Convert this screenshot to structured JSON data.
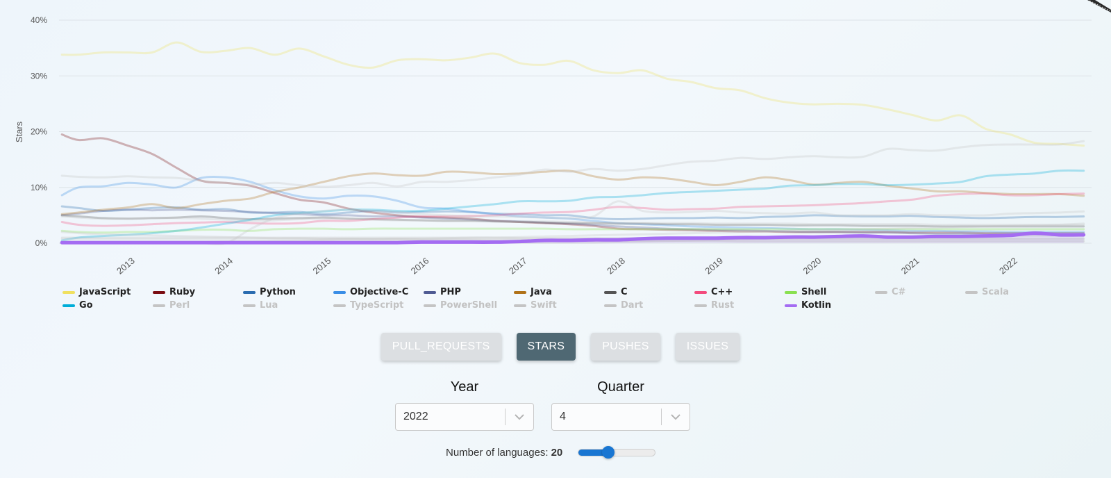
{
  "chart_data": {
    "type": "line",
    "title": "",
    "ylabel": "Stars",
    "xlabel": "",
    "xlim": [
      2012.3,
      2022.83
    ],
    "ylim": [
      0,
      40
    ],
    "yticks": [
      0,
      10,
      20,
      30,
      40
    ],
    "ytick_labels": [
      "0%",
      "10%",
      "20%",
      "30%",
      "40%"
    ],
    "xticks": [
      2013,
      2014,
      2015,
      2016,
      2017,
      2018,
      2019,
      2020,
      2021,
      2022
    ],
    "xtick_labels": [
      "2013",
      "2014",
      "2015",
      "2016",
      "2017",
      "2018",
      "2019",
      "2020",
      "2021",
      "2022"
    ],
    "grid": "horizontal",
    "legend_position": "bottom",
    "x": [
      2012.33,
      2012.5,
      2012.75,
      2013.0,
      2013.25,
      2013.5,
      2013.75,
      2014.0,
      2014.25,
      2014.5,
      2014.75,
      2015.0,
      2015.25,
      2015.5,
      2015.75,
      2016.0,
      2016.25,
      2016.5,
      2016.75,
      2017.0,
      2017.25,
      2017.5,
      2017.75,
      2018.0,
      2018.25,
      2018.5,
      2018.75,
      2019.0,
      2019.25,
      2019.5,
      2019.75,
      2020.0,
      2020.25,
      2020.5,
      2020.75,
      2021.0,
      2021.25,
      2021.5,
      2021.75,
      2022.0,
      2022.25,
      2022.5,
      2022.75
    ],
    "series": [
      {
        "name": "JavaScript",
        "color": "#f0e060",
        "muted": true,
        "emphasized": false,
        "values": [
          33.8,
          33.8,
          34.2,
          34.2,
          34.2,
          36.0,
          34.3,
          34.5,
          35.0,
          33.8,
          34.9,
          33.5,
          32.0,
          31.5,
          32.8,
          33.0,
          32.8,
          33.3,
          34.0,
          32.3,
          32.0,
          32.7,
          31.0,
          30.5,
          31.0,
          29.5,
          28.9,
          27.8,
          27.4,
          26.0,
          25.2,
          24.9,
          25.0,
          24.8,
          24.0,
          23.0,
          22.0,
          22.9,
          20.5,
          19.5,
          18.0,
          17.8,
          17.5
        ]
      },
      {
        "name": "Ruby",
        "color": "#7a0c12",
        "muted": true,
        "emphasized": false,
        "values": [
          19.5,
          18.5,
          18.8,
          17.5,
          16.0,
          13.5,
          11.2,
          10.8,
          10.3,
          9.0,
          7.8,
          7.3,
          6.2,
          5.5,
          5.0,
          4.7,
          4.6,
          4.4,
          4.0,
          3.8,
          3.6,
          3.4,
          3.1,
          2.6,
          2.5,
          2.4,
          2.3,
          2.2,
          2.1,
          2.1,
          2.0,
          2.0,
          2.0,
          2.0,
          2.0,
          1.9,
          1.9,
          1.9,
          1.8,
          1.8,
          1.8,
          1.8,
          1.8
        ]
      },
      {
        "name": "Python",
        "color": "#2b6cb0",
        "muted": true,
        "emphasized": false,
        "values": [
          6.6,
          6.3,
          5.8,
          6.0,
          6.3,
          6.4,
          6.0,
          6.1,
          5.5,
          5.5,
          5.6,
          5.2,
          5.5,
          5.8,
          5.5,
          5.6,
          5.7,
          5.6,
          5.3,
          5.2,
          5.0,
          5.0,
          4.5,
          4.3,
          4.4,
          4.5,
          4.5,
          4.6,
          4.5,
          4.7,
          4.8,
          5.0,
          4.9,
          4.8,
          4.8,
          4.9,
          4.7,
          4.6,
          4.5,
          4.6,
          4.7,
          4.7,
          4.8
        ]
      },
      {
        "name": "Objective-C",
        "color": "#3a8ee6",
        "muted": true,
        "emphasized": false,
        "values": [
          8.6,
          10.0,
          10.2,
          10.8,
          10.5,
          10.0,
          11.7,
          11.8,
          11.0,
          9.5,
          8.4,
          8.0,
          8.5,
          8.4,
          7.6,
          6.4,
          6.2,
          5.6,
          5.2,
          4.8,
          4.6,
          4.4,
          4.0,
          3.6,
          3.4,
          3.2,
          3.0,
          2.9,
          2.8,
          2.7,
          2.6,
          2.5,
          2.5,
          2.4,
          2.3,
          2.2,
          2.2,
          2.1,
          2.1,
          2.0,
          2.0,
          2.0,
          2.0
        ]
      },
      {
        "name": "PHP",
        "color": "#4f5b93",
        "muted": true,
        "emphasized": false,
        "values": [
          5.0,
          5.3,
          5.8,
          6.0,
          5.9,
          6.0,
          5.9,
          5.8,
          5.6,
          5.4,
          5.2,
          5.0,
          5.0,
          4.8,
          4.8,
          4.6,
          4.4,
          4.2,
          4.0,
          3.9,
          3.7,
          3.5,
          3.3,
          3.0,
          2.8,
          2.6,
          2.5,
          2.4,
          2.3,
          2.2,
          2.1,
          2.0,
          2.0,
          1.9,
          1.9,
          1.8,
          1.7,
          1.7,
          1.6,
          1.6,
          1.6,
          1.5,
          1.5
        ]
      },
      {
        "name": "Java",
        "color": "#b07219",
        "muted": true,
        "emphasized": false,
        "values": [
          5.2,
          5.5,
          6.0,
          6.4,
          7.0,
          6.3,
          7.0,
          7.6,
          8.0,
          9.2,
          10.0,
          11.0,
          12.0,
          12.5,
          12.2,
          12.1,
          12.8,
          12.7,
          12.4,
          12.5,
          12.8,
          13.0,
          12.0,
          11.4,
          11.8,
          11.6,
          11.0,
          10.4,
          11.0,
          11.8,
          11.3,
          10.5,
          10.8,
          11.0,
          10.3,
          9.8,
          9.3,
          9.3,
          9.0,
          8.8,
          8.8,
          8.8,
          8.5
        ]
      },
      {
        "name": "C",
        "color": "#555555",
        "muted": true,
        "emphasized": false,
        "values": [
          5.0,
          4.8,
          4.5,
          4.4,
          4.5,
          4.6,
          4.8,
          4.5,
          4.3,
          4.4,
          4.5,
          4.6,
          4.4,
          4.3,
          4.2,
          4.1,
          4.0,
          4.0,
          3.9,
          3.8,
          3.7,
          3.6,
          3.6,
          3.5,
          3.5,
          3.4,
          3.4,
          3.3,
          3.3,
          3.3,
          3.2,
          3.2,
          3.2,
          3.1,
          3.1,
          3.1,
          3.0,
          3.0,
          3.0,
          3.0,
          3.0,
          3.0,
          3.0
        ]
      },
      {
        "name": "C++",
        "color": "#f34b7d",
        "muted": true,
        "emphasized": false,
        "values": [
          3.8,
          3.3,
          3.1,
          3.2,
          3.4,
          3.6,
          3.7,
          3.8,
          3.6,
          3.5,
          3.6,
          4.0,
          4.0,
          4.3,
          4.6,
          4.8,
          4.8,
          4.9,
          5.0,
          5.3,
          5.5,
          5.6,
          6.0,
          6.5,
          6.3,
          6.0,
          6.1,
          6.2,
          6.5,
          6.6,
          6.7,
          6.8,
          7.0,
          7.2,
          7.5,
          7.8,
          8.5,
          8.8,
          8.9,
          8.6,
          8.6,
          8.8,
          8.9
        ]
      },
      {
        "name": "Shell",
        "color": "#89e051",
        "muted": true,
        "emphasized": false,
        "values": [
          2.2,
          2.0,
          1.9,
          2.0,
          2.0,
          2.2,
          2.4,
          2.4,
          2.2,
          2.5,
          2.6,
          2.6,
          2.5,
          2.6,
          2.6,
          2.6,
          2.6,
          2.6,
          2.6,
          2.6,
          2.6,
          2.5,
          2.5,
          2.5,
          2.5,
          2.5,
          2.5,
          2.5,
          2.5,
          2.5,
          2.5,
          2.5,
          2.5,
          2.5,
          2.5,
          2.5,
          2.5,
          2.5,
          2.5,
          2.5,
          2.5,
          2.5,
          2.5
        ]
      },
      {
        "name": "C#",
        "color": "#c4c4c4",
        "muted": true,
        "emphasized": false,
        "values": [
          4.8,
          4.6,
          4.4,
          4.4,
          4.5,
          4.5,
          4.4,
          4.2,
          4.0,
          4.1,
          4.3,
          4.4,
          4.4,
          4.2,
          4.1,
          4.1,
          4.0,
          4.0,
          3.9,
          3.9,
          3.9,
          3.8,
          3.7,
          3.6,
          3.6,
          3.6,
          3.6,
          3.5,
          3.5,
          3.5,
          3.5,
          3.4,
          3.4,
          3.4,
          3.4,
          3.4,
          3.3,
          3.3,
          3.3,
          3.3,
          3.3,
          3.3,
          3.3
        ]
      },
      {
        "name": "Scala",
        "color": "#c4c4c4",
        "muted": true,
        "emphasized": false,
        "values": [
          1.0,
          1.0,
          1.0,
          1.0,
          1.0,
          1.0,
          1.0,
          1.0,
          1.0,
          1.0,
          1.0,
          1.0,
          1.0,
          1.0,
          1.0,
          1.0,
          1.0,
          1.0,
          1.0,
          0.9,
          0.9,
          0.9,
          0.9,
          0.9,
          0.9,
          0.9,
          0.8,
          0.8,
          0.8,
          0.8,
          0.8,
          0.8,
          0.8,
          0.8,
          0.8,
          0.8,
          0.8,
          0.8,
          0.8,
          0.8,
          0.8,
          0.8,
          0.8
        ]
      },
      {
        "name": "Go",
        "color": "#00add8",
        "muted": true,
        "emphasized": false,
        "values": [
          0.5,
          1.0,
          1.3,
          1.5,
          1.8,
          2.2,
          2.8,
          3.5,
          4.2,
          5.0,
          5.4,
          5.7,
          6.0,
          6.0,
          5.8,
          5.8,
          6.2,
          6.6,
          7.0,
          7.5,
          7.5,
          7.6,
          8.2,
          8.3,
          8.6,
          9.0,
          9.2,
          9.4,
          9.6,
          9.8,
          10.3,
          10.4,
          10.6,
          10.6,
          10.4,
          10.5,
          10.7,
          11.0,
          12.0,
          12.3,
          12.5,
          13.0,
          13.0
        ]
      },
      {
        "name": "Perl",
        "color": "#c4c4c4",
        "muted": true,
        "emphasized": false,
        "values": [
          2.0,
          1.8,
          1.6,
          1.5,
          1.4,
          1.3,
          1.2,
          1.1,
          1.0,
          0.9,
          0.9,
          0.8,
          0.8,
          0.7,
          0.7,
          0.6,
          0.6,
          0.6,
          0.5,
          0.5,
          0.5,
          0.5,
          0.4,
          0.4,
          0.4,
          0.4,
          0.4,
          0.4,
          0.3,
          0.3,
          0.3,
          0.3,
          0.3,
          0.3,
          0.3,
          0.3,
          0.3,
          0.3,
          0.3,
          0.3,
          0.3,
          0.3,
          0.3
        ]
      },
      {
        "name": "Lua",
        "color": "#c4c4c4",
        "muted": true,
        "emphasized": false,
        "values": [
          0.8,
          0.8,
          0.8,
          0.8,
          0.8,
          0.8,
          0.8,
          0.8,
          0.8,
          0.8,
          0.8,
          0.8,
          0.8,
          0.8,
          0.8,
          0.8,
          0.8,
          0.8,
          0.8,
          0.8,
          0.8,
          0.8,
          0.8,
          0.8,
          0.8,
          0.8,
          0.8,
          0.8,
          0.8,
          0.8,
          0.8,
          0.8,
          0.8,
          0.8,
          0.8,
          0.8,
          0.8,
          0.8,
          0.8,
          0.8,
          0.8,
          0.8,
          0.8
        ]
      },
      {
        "name": "TypeScript",
        "color": "#c4c4c4",
        "muted": true,
        "emphasized": false,
        "values": [
          12.1,
          11.9,
          11.8,
          12.0,
          11.8,
          11.7,
          11.2,
          10.8,
          10.5,
          10.8,
          10.4,
          10.1,
          10.4,
          10.8,
          10.2,
          11.0,
          11.0,
          11.3,
          11.8,
          12.3,
          13.2,
          12.8,
          13.3,
          13.0,
          13.3,
          14.0,
          14.6,
          14.8,
          15.3,
          15.1,
          15.4,
          15.6,
          15.4,
          15.5,
          16.9,
          16.7,
          16.6,
          17.2,
          17.6,
          17.7,
          17.7,
          17.7,
          18.3
        ]
      },
      {
        "name": "PowerShell",
        "color": "#c4c4c4",
        "muted": true,
        "emphasized": false,
        "values": [
          0.3,
          0.3,
          0.3,
          0.3,
          0.3,
          0.3,
          0.3,
          0.3,
          0.3,
          0.3,
          0.3,
          0.4,
          0.4,
          0.4,
          0.4,
          0.4,
          0.4,
          0.4,
          0.4,
          0.4,
          0.4,
          0.4,
          0.4,
          0.4,
          0.4,
          0.4,
          0.4,
          0.4,
          0.4,
          0.4,
          0.4,
          0.4,
          0.4,
          0.4,
          0.4,
          0.4,
          0.4,
          0.4,
          0.4,
          0.4,
          0.4,
          0.4,
          0.4
        ]
      },
      {
        "name": "Swift",
        "color": "#c4c4c4",
        "muted": true,
        "emphasized": false,
        "values": [
          0.0,
          0.0,
          0.0,
          0.0,
          0.0,
          0.0,
          0.0,
          0.0,
          2.5,
          4.5,
          5.3,
          5.8,
          6.0,
          5.8,
          5.6,
          5.2,
          5.0,
          4.8,
          4.8,
          4.7,
          4.6,
          4.5,
          4.8,
          7.5,
          5.8,
          5.5,
          5.6,
          5.8,
          5.5,
          5.4,
          5.3,
          5.5,
          5.0,
          5.0,
          5.0,
          5.2,
          5.0,
          5.0,
          5.0,
          5.3,
          5.4,
          5.5,
          5.7
        ]
      },
      {
        "name": "Dart",
        "color": "#c4c4c4",
        "muted": true,
        "emphasized": false,
        "values": [
          0.0,
          0.0,
          0.0,
          0.0,
          0.0,
          0.1,
          0.1,
          0.1,
          0.1,
          0.1,
          0.1,
          0.1,
          0.1,
          0.1,
          0.1,
          0.1,
          0.1,
          0.1,
          0.1,
          0.1,
          0.1,
          0.1,
          0.1,
          0.2,
          0.3,
          0.4,
          0.5,
          0.6,
          0.7,
          0.8,
          0.9,
          1.0,
          1.0,
          1.1,
          1.2,
          1.2,
          1.3,
          1.3,
          1.3,
          1.3,
          1.3,
          1.3,
          1.3
        ]
      },
      {
        "name": "Rust",
        "color": "#c4c4c4",
        "muted": true,
        "emphasized": false,
        "values": [
          0.0,
          0.0,
          0.0,
          0.1,
          0.1,
          0.2,
          0.2,
          0.3,
          0.3,
          0.4,
          0.5,
          0.6,
          0.7,
          0.7,
          0.8,
          0.8,
          0.9,
          1.0,
          1.0,
          1.1,
          1.2,
          1.3,
          1.4,
          1.5,
          1.6,
          1.7,
          1.8,
          1.9,
          2.0,
          2.1,
          2.2,
          2.3,
          2.4,
          2.5,
          2.6,
          2.7,
          2.8,
          2.9,
          3.0,
          3.1,
          3.2,
          3.3,
          3.5
        ]
      },
      {
        "name": "Kotlin",
        "color": "#a46cf2",
        "muted": false,
        "emphasized": true,
        "values": [
          0.1,
          0.1,
          0.1,
          0.1,
          0.1,
          0.1,
          0.1,
          0.1,
          0.1,
          0.1,
          0.1,
          0.1,
          0.1,
          0.1,
          0.1,
          0.2,
          0.2,
          0.2,
          0.2,
          0.3,
          0.5,
          0.5,
          0.6,
          0.6,
          0.8,
          0.9,
          0.9,
          0.9,
          1.0,
          1.0,
          1.1,
          1.1,
          1.2,
          1.3,
          1.1,
          1.1,
          1.2,
          1.2,
          1.3,
          1.4,
          1.8,
          1.5,
          1.5
        ]
      }
    ]
  },
  "legend": [
    {
      "label": "JavaScript",
      "color": "#f0e060",
      "muted": false
    },
    {
      "label": "Ruby",
      "color": "#7a0c12",
      "muted": false
    },
    {
      "label": "Python",
      "color": "#2b6cb0",
      "muted": false
    },
    {
      "label": "Objective-C",
      "color": "#3a8ee6",
      "muted": false
    },
    {
      "label": "PHP",
      "color": "#4f5b93",
      "muted": false
    },
    {
      "label": "Java",
      "color": "#b07219",
      "muted": false
    },
    {
      "label": "C",
      "color": "#555555",
      "muted": false
    },
    {
      "label": "C++",
      "color": "#f34b7d",
      "muted": false
    },
    {
      "label": "Shell",
      "color": "#89e051",
      "muted": false
    },
    {
      "label": "C#",
      "color": "#c4c4c4",
      "muted": true
    },
    {
      "label": "Scala",
      "color": "#c4c4c4",
      "muted": true
    },
    {
      "label": "Go",
      "color": "#00add8",
      "muted": false
    },
    {
      "label": "Perl",
      "color": "#c4c4c4",
      "muted": true
    },
    {
      "label": "Lua",
      "color": "#c4c4c4",
      "muted": true
    },
    {
      "label": "TypeScript",
      "color": "#c4c4c4",
      "muted": true
    },
    {
      "label": "PowerShell",
      "color": "#c4c4c4",
      "muted": true
    },
    {
      "label": "Swift",
      "color": "#c4c4c4",
      "muted": true
    },
    {
      "label": "Dart",
      "color": "#c4c4c4",
      "muted": true
    },
    {
      "label": "Rust",
      "color": "#c4c4c4",
      "muted": true
    },
    {
      "label": "Kotlin",
      "color": "#a46cf2",
      "muted": false
    }
  ],
  "metric_buttons": [
    {
      "label": "PULL_REQUESTS",
      "active": false
    },
    {
      "label": "STARS",
      "active": true
    },
    {
      "label": "PUSHES",
      "active": false
    },
    {
      "label": "ISSUES",
      "active": false
    }
  ],
  "filters": {
    "year": {
      "title": "Year",
      "value": "2022",
      "icon": "chevron-down-icon"
    },
    "quarter": {
      "title": "Quarter",
      "value": "4",
      "icon": "chevron-down-icon"
    }
  },
  "languages_slider": {
    "label": "Number of languages:",
    "value": "20",
    "fraction": 0.39
  },
  "colors": {
    "accent": "#1976d2",
    "active_button": "#4f6873",
    "inactive_button": "#dcdfe2"
  }
}
